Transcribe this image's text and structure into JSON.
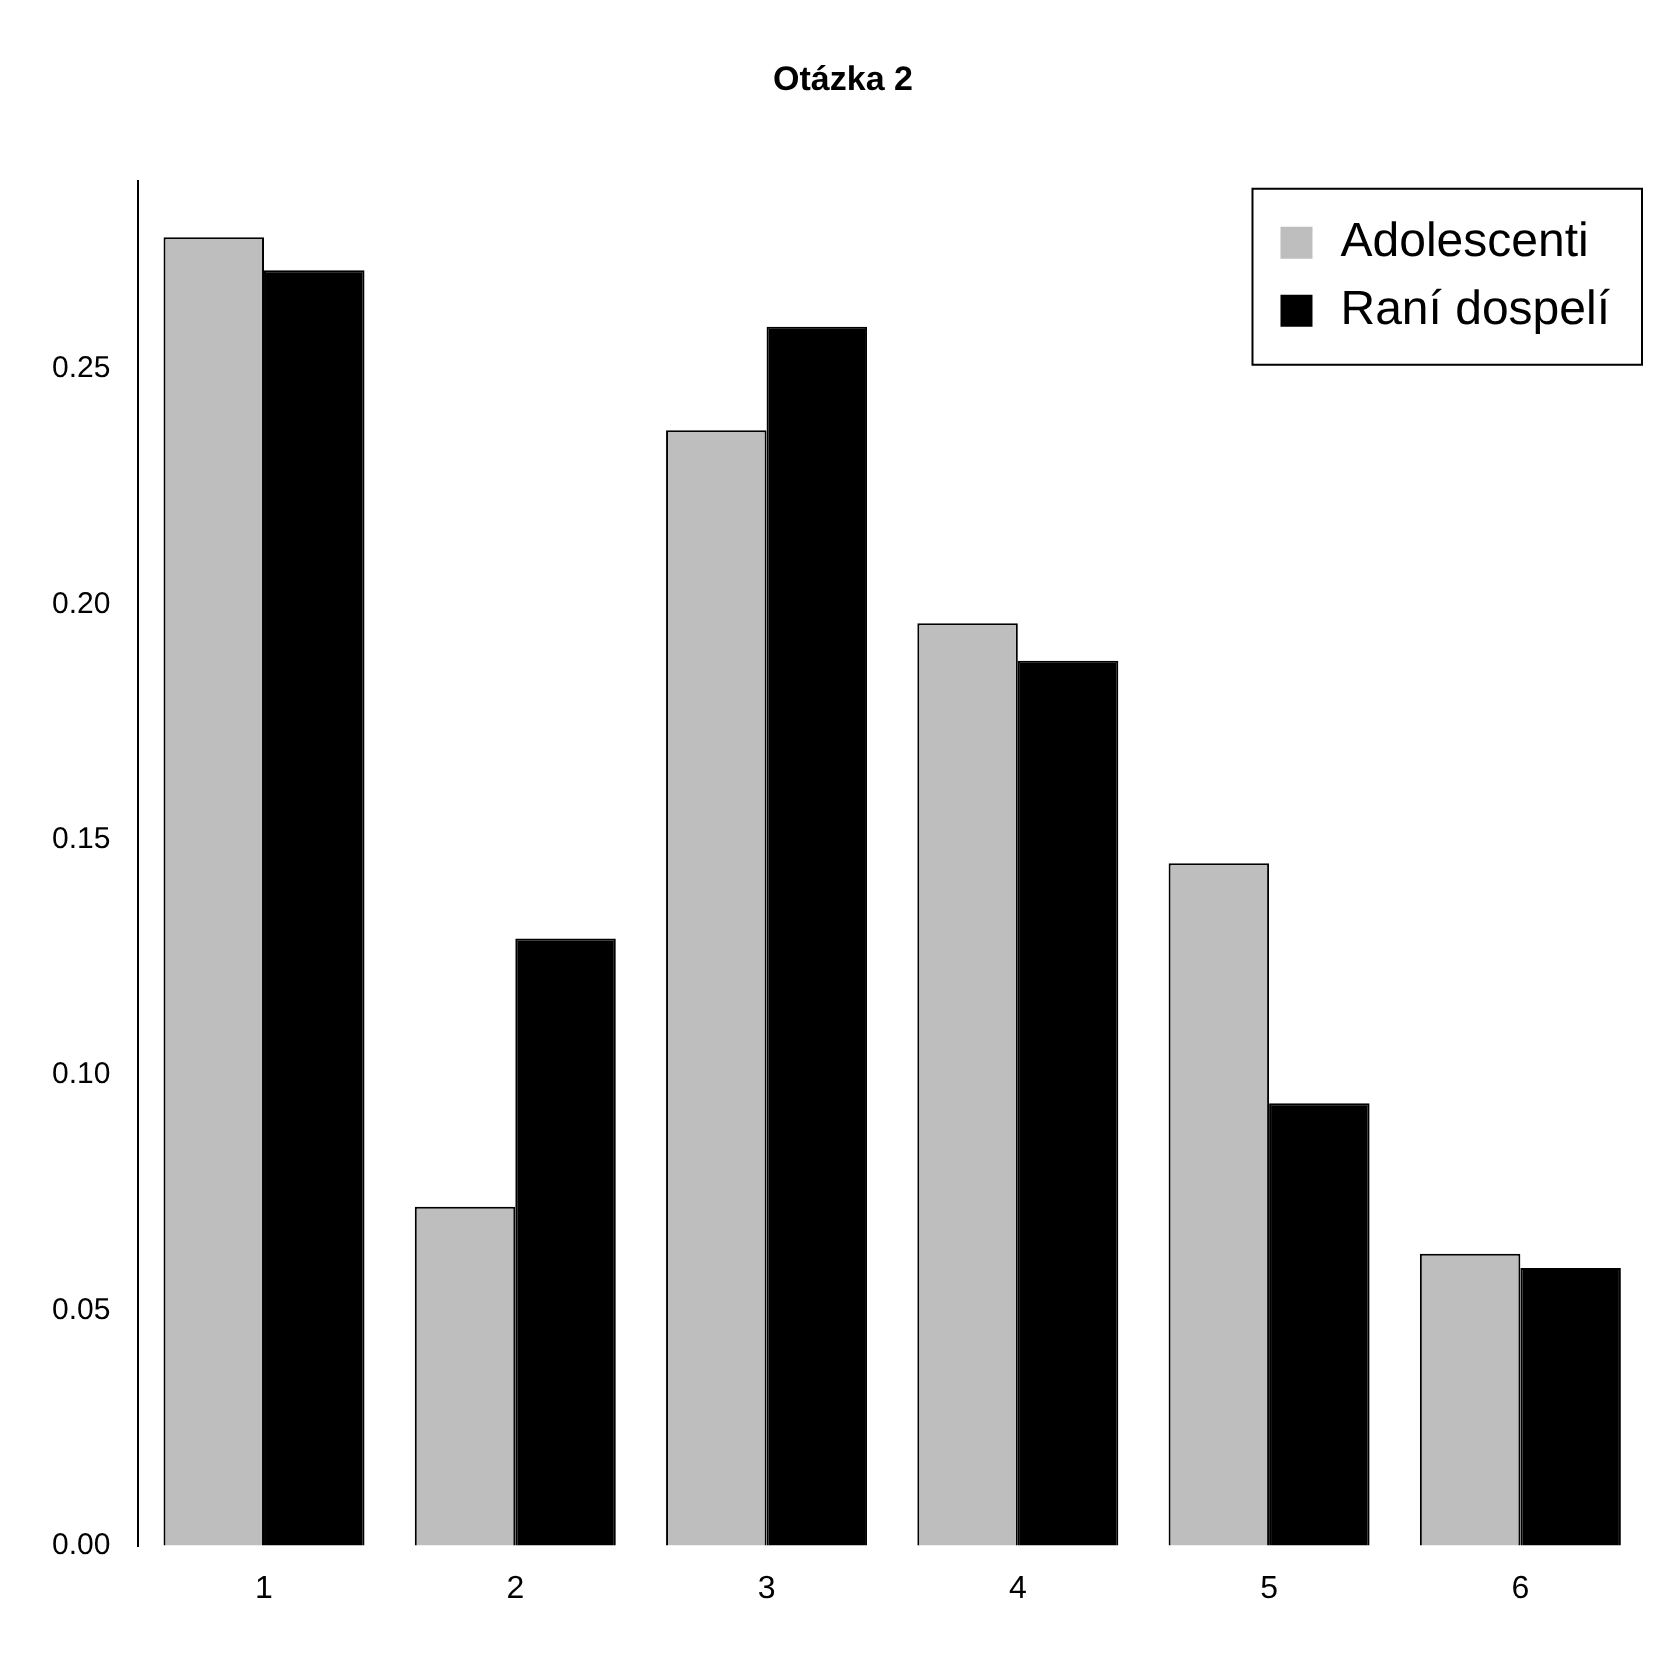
{
  "chart_data": {
    "type": "bar",
    "title": "Otázka 2",
    "categories": [
      "1",
      "2",
      "3",
      "4",
      "5",
      "6"
    ],
    "series": [
      {
        "name": "Adolescenti",
        "color": "#bebebe",
        "values": [
          0.278,
          0.072,
          0.237,
          0.196,
          0.145,
          0.062
        ]
      },
      {
        "name": "Raní dospelí",
        "color": "#000000",
        "values": [
          0.271,
          0.129,
          0.259,
          0.188,
          0.094,
          0.059
        ]
      }
    ],
    "ylim": [
      0,
      0.29
    ],
    "yticks": [
      {
        "value": 0,
        "label": "0.00"
      },
      {
        "value": 0.05,
        "label": "0.05"
      },
      {
        "value": 0.1,
        "label": "0.10"
      },
      {
        "value": 0.15,
        "label": "0.15"
      },
      {
        "value": 0.2,
        "label": "0.20"
      },
      {
        "value": 0.25,
        "label": "0.25"
      }
    ],
    "grid": false,
    "legend": "top right"
  }
}
